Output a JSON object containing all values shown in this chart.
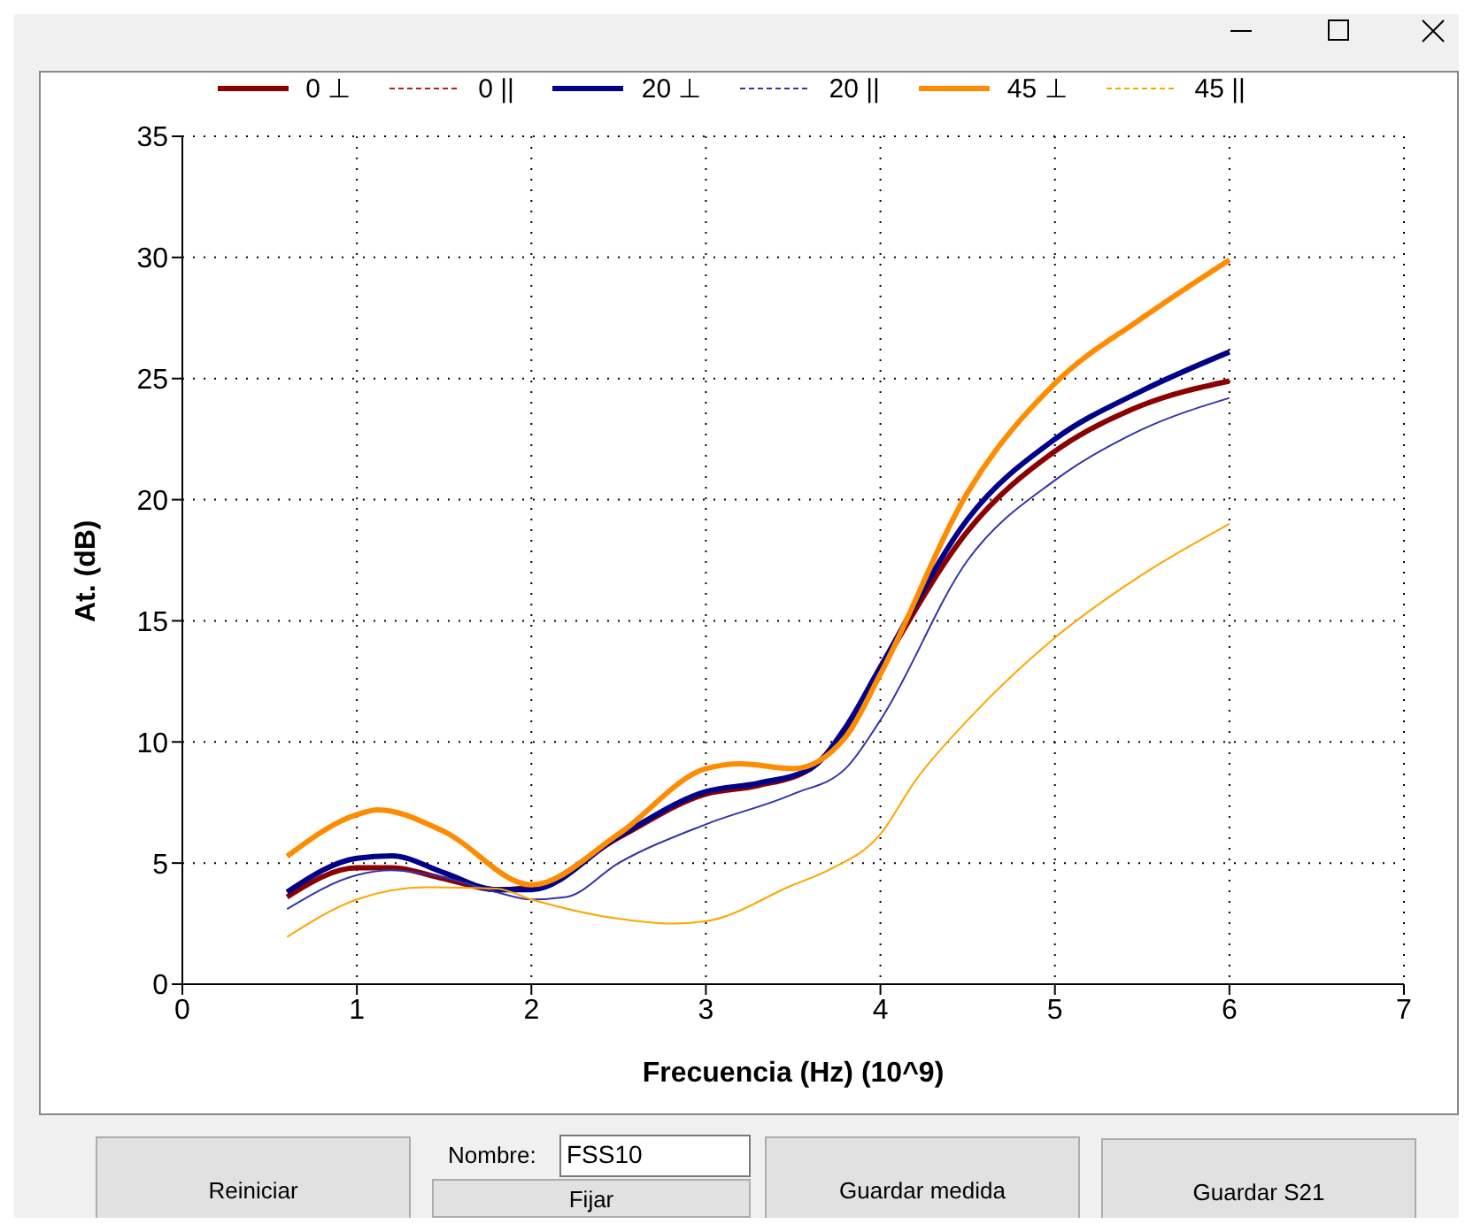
{
  "chart_data": {
    "type": "line",
    "xlabel": "Frecuencia (Hz) (10^9)",
    "ylabel": "At. (dB)",
    "xlim": [
      0,
      7
    ],
    "xticks": [
      0,
      1,
      2,
      3,
      4,
      5,
      6,
      7
    ],
    "ylim": [
      0,
      35
    ],
    "yticks": [
      0,
      5,
      10,
      15,
      20,
      25,
      30,
      35
    ],
    "grid": true,
    "legend": "top",
    "line_style": "solid",
    "marker": "none",
    "series": [
      {
        "name": "0 ⊥",
        "color": "#8b0000",
        "x": [
          0.6,
          1,
          1.2,
          1.5,
          1.8,
          2,
          2.5,
          3,
          3.3,
          3.6,
          3.8,
          4,
          4.5,
          5,
          5.5,
          6
        ],
        "values": [
          3.6,
          4.8,
          4.8,
          4.35,
          3.9,
          4.0,
          6.05,
          7.85,
          8.2,
          8.9,
          10.5,
          13.0,
          18.7,
          22.0,
          23.9,
          24.9
        ]
      },
      {
        "name": "0 ||",
        "color": "#b22222"
      },
      {
        "name": "20 ⊥",
        "color": "#00008b",
        "x": [
          0.6,
          1,
          1.2,
          1.5,
          1.8,
          2,
          2.5,
          3,
          3.3,
          3.6,
          3.8,
          4,
          4.5,
          5,
          5.5,
          6
        ],
        "values": [
          3.8,
          5.2,
          5.3,
          4.6,
          3.9,
          3.9,
          6.1,
          7.95,
          8.3,
          8.9,
          10.6,
          13.1,
          19.2,
          22.5,
          24.5,
          26.1
        ]
      },
      {
        "name": "20 ||",
        "color": "#3333aa",
        "x": [
          0.6,
          1,
          1.2,
          1.5,
          1.8,
          2,
          2.2,
          2.5,
          3,
          3.5,
          3.8,
          4,
          4.5,
          5,
          5.5,
          6
        ],
        "values": [
          3.1,
          4.5,
          4.7,
          4.4,
          3.8,
          3.5,
          3.6,
          5.0,
          6.6,
          7.85,
          8.9,
          10.9,
          17.5,
          20.8,
          22.9,
          24.2
        ]
      },
      {
        "name": "45 ⊥",
        "color": "#ff8c00",
        "x": [
          0.6,
          1,
          1.12,
          1.5,
          2,
          2.5,
          3,
          3.2,
          3.5,
          3.8,
          4,
          4.5,
          5,
          5.5,
          6
        ],
        "values": [
          5.28,
          7.0,
          7.2,
          6.3,
          4.1,
          6.2,
          8.9,
          9.1,
          8.9,
          10.2,
          12.8,
          20.3,
          24.8,
          27.5,
          29.9
        ]
      },
      {
        "name": "45 ||",
        "color": "#ffa500",
        "x": [
          0.6,
          1,
          1.4,
          1.8,
          2,
          2.5,
          2.8,
          3,
          3.5,
          3.7,
          4,
          4.2,
          4.5,
          5,
          5.5,
          6
        ],
        "values": [
          1.95,
          3.5,
          4.0,
          3.95,
          3.5,
          2.7,
          2.5,
          2.6,
          4.1,
          4.7,
          6.2,
          8.4,
          10.9,
          14.3,
          16.9,
          19.0
        ]
      }
    ],
    "annotations": [
      "Reiniciar",
      "Nombre:",
      "FSS10",
      "Fijar",
      "Guardar medida",
      "Guardar S21"
    ]
  }
}
